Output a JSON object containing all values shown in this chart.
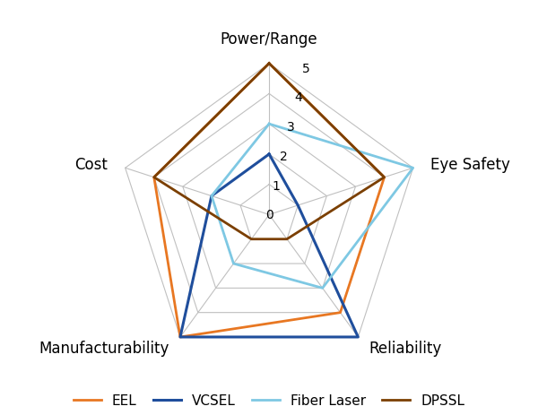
{
  "categories": [
    "Power/Range",
    "Eye Safety",
    "Reliability",
    "Manufacturability",
    "Cost"
  ],
  "series": {
    "EEL": [
      5,
      4,
      4,
      5,
      4
    ],
    "VCSEL": [
      2,
      1,
      5,
      5,
      2
    ],
    "Fiber Laser": [
      3,
      5,
      3,
      2,
      2
    ],
    "DPSSL": [
      5,
      4,
      1,
      1,
      4
    ]
  },
  "colors": {
    "EEL": "#E87722",
    "VCSEL": "#1F4E9C",
    "Fiber Laser": "#7EC8E3",
    "DPSSL": "#7B3F00"
  },
  "linewidths": {
    "EEL": 2.0,
    "VCSEL": 2.2,
    "Fiber Laser": 2.0,
    "DPSSL": 2.0
  },
  "max_val": 5,
  "grid_color": "#C0C0C0",
  "grid_linewidth": 0.8,
  "background_color": "#FFFFFF",
  "legend_fontsize": 11,
  "label_fontsize": 12,
  "tick_fontsize": 10
}
